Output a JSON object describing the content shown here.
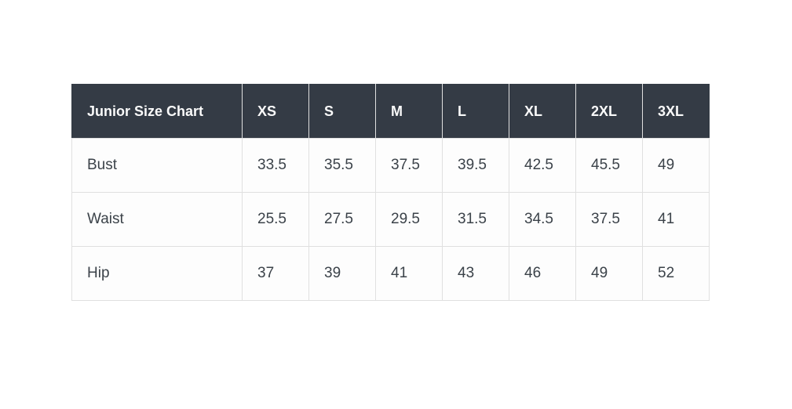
{
  "page": {
    "background_color": "#ffffff"
  },
  "table": {
    "title": "Junior Size Chart",
    "header_bg_color": "#343b45",
    "header_text_color": "#fafafa",
    "body_text_color": "#3b4249",
    "border_color": "#e0e0e0",
    "columns": [
      "XS",
      "S",
      "M",
      "L",
      "XL",
      "2XL",
      "3XL"
    ],
    "rows": [
      {
        "label": "Bust",
        "values": [
          "33.5",
          "35.5",
          "37.5",
          "39.5",
          "42.5",
          "45.5",
          "49"
        ]
      },
      {
        "label": "Waist",
        "values": [
          "25.5",
          "27.5",
          "29.5",
          "31.5",
          "34.5",
          "37.5",
          "41"
        ]
      },
      {
        "label": "Hip",
        "values": [
          "37",
          "39",
          "41",
          "43",
          "46",
          "49",
          "52"
        ]
      }
    ]
  },
  "chart_data": {
    "type": "table",
    "title": "Junior Size Chart",
    "columns": [
      "XS",
      "S",
      "M",
      "L",
      "XL",
      "2XL",
      "3XL"
    ],
    "row_labels": [
      "Bust",
      "Waist",
      "Hip"
    ],
    "rows": [
      [
        33.5,
        35.5,
        37.5,
        39.5,
        42.5,
        45.5,
        49
      ],
      [
        25.5,
        27.5,
        29.5,
        31.5,
        34.5,
        37.5,
        41
      ],
      [
        37,
        39,
        41,
        43,
        46,
        49,
        52
      ]
    ]
  }
}
